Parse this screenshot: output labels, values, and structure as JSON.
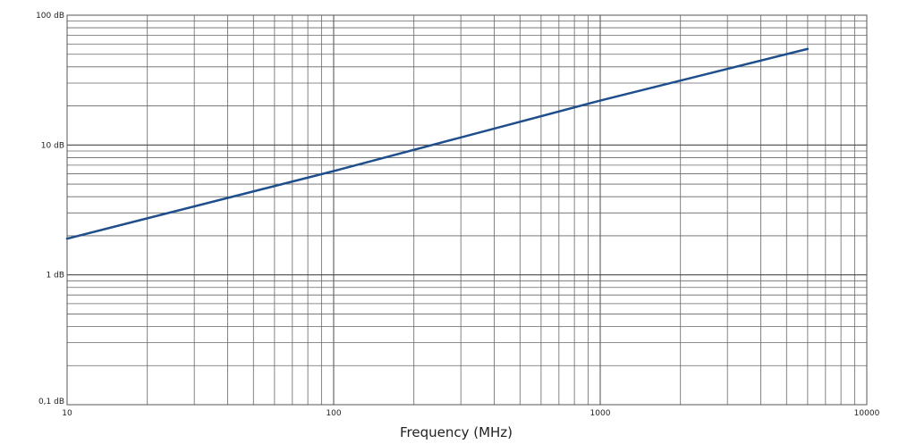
{
  "chart_data": {
    "type": "line",
    "xlabel": "Frequency (MHz)",
    "ylabel": "",
    "xscale": "log",
    "yscale": "log",
    "xlim": [
      10,
      10000
    ],
    "ylim": [
      0.1,
      100
    ],
    "grid": true,
    "legend": "none",
    "x_ticks": [
      {
        "value": 10,
        "label": "10"
      },
      {
        "value": 100,
        "label": "100"
      },
      {
        "value": 1000,
        "label": "1000"
      },
      {
        "value": 10000,
        "label": "10000"
      }
    ],
    "y_ticks": [
      {
        "value": 0.1,
        "label": "0,1 dB"
      },
      {
        "value": 1,
        "label": "1 dB"
      },
      {
        "value": 10,
        "label": "10 dB"
      },
      {
        "value": 100,
        "label": "100 dB"
      }
    ],
    "series": [
      {
        "color": "#1f4e8c",
        "points": [
          {
            "x": 10,
            "y": 1.9
          },
          {
            "x": 100,
            "y": 6.3
          },
          {
            "x": 1000,
            "y": 22
          },
          {
            "x": 6000,
            "y": 55
          }
        ]
      }
    ]
  }
}
